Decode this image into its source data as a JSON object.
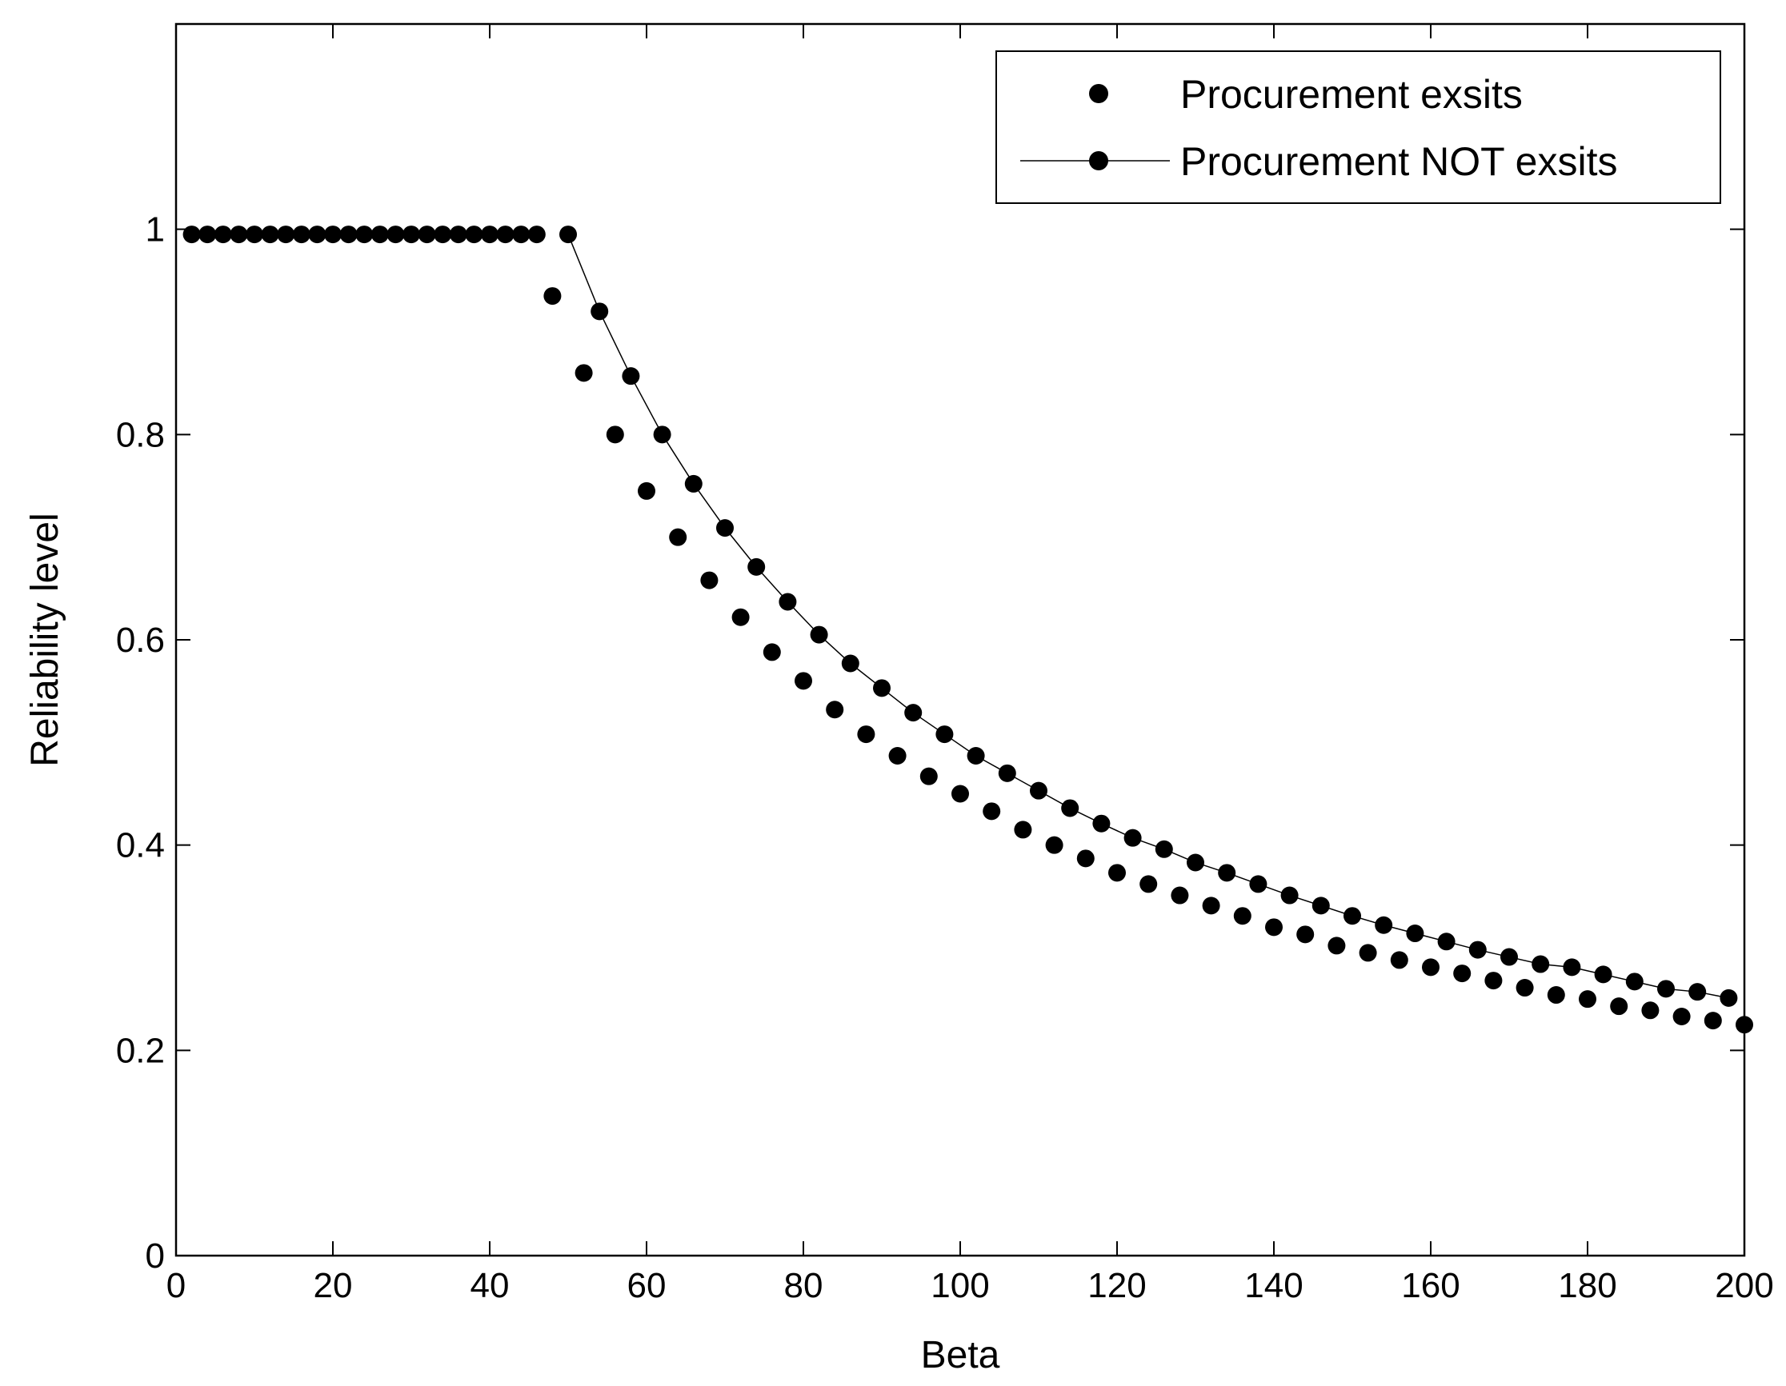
{
  "chart_data": {
    "type": "scatter",
    "xlabel": "Beta",
    "ylabel": "Reliability level",
    "xlim": [
      0,
      200
    ],
    "ylim": [
      0,
      1.2
    ],
    "xticks": [
      0,
      20,
      40,
      60,
      80,
      100,
      120,
      140,
      160,
      180,
      200
    ],
    "yticks": [
      0,
      0.2,
      0.4,
      0.6,
      0.8,
      1
    ],
    "ytick_labels": [
      "0",
      "0.2",
      "0.4",
      "0.6",
      "0.8",
      "1"
    ],
    "grid": false,
    "legend_position": "top-right",
    "series": [
      {
        "name": "Procurement exsits",
        "style": "markers",
        "x": [
          2,
          4,
          6,
          8,
          10,
          12,
          14,
          16,
          18,
          20,
          22,
          24,
          26,
          28,
          30,
          32,
          34,
          36,
          38,
          40,
          42,
          44,
          46,
          48,
          52,
          56,
          60,
          64,
          68,
          72,
          76,
          80,
          84,
          88,
          92,
          96,
          100,
          104,
          108,
          112,
          116,
          120,
          124,
          128,
          132,
          136,
          140,
          144,
          148,
          152,
          156,
          160,
          164,
          168,
          172,
          176,
          180,
          184,
          188,
          192,
          196,
          200
        ],
        "y": [
          0.995,
          0.995,
          0.995,
          0.995,
          0.995,
          0.995,
          0.995,
          0.995,
          0.995,
          0.995,
          0.995,
          0.995,
          0.995,
          0.995,
          0.995,
          0.995,
          0.995,
          0.995,
          0.995,
          0.995,
          0.995,
          0.995,
          0.995,
          0.935,
          0.86,
          0.8,
          0.745,
          0.7,
          0.658,
          0.622,
          0.588,
          0.56,
          0.532,
          0.508,
          0.487,
          0.467,
          0.45,
          0.433,
          0.415,
          0.4,
          0.387,
          0.373,
          0.362,
          0.351,
          0.341,
          0.331,
          0.32,
          0.313,
          0.302,
          0.295,
          0.288,
          0.281,
          0.275,
          0.268,
          0.261,
          0.254,
          0.25,
          0.243,
          0.239,
          0.233,
          0.229,
          0.225
        ]
      },
      {
        "name": "Procurement NOT exsits",
        "style": "line+markers",
        "x": [
          50,
          54,
          58,
          62,
          66,
          70,
          74,
          78,
          82,
          86,
          90,
          94,
          98,
          102,
          106,
          110,
          114,
          118,
          122,
          126,
          130,
          134,
          138,
          142,
          146,
          150,
          154,
          158,
          162,
          166,
          170,
          174,
          178,
          182,
          186,
          190,
          194,
          198
        ],
        "y": [
          0.995,
          0.92,
          0.857,
          0.8,
          0.752,
          0.709,
          0.671,
          0.637,
          0.605,
          0.577,
          0.553,
          0.529,
          0.508,
          0.487,
          0.47,
          0.453,
          0.436,
          0.421,
          0.407,
          0.396,
          0.383,
          0.373,
          0.362,
          0.351,
          0.341,
          0.331,
          0.322,
          0.314,
          0.306,
          0.298,
          0.291,
          0.284,
          0.281,
          0.274,
          0.267,
          0.26,
          0.257,
          0.251
        ]
      }
    ]
  }
}
